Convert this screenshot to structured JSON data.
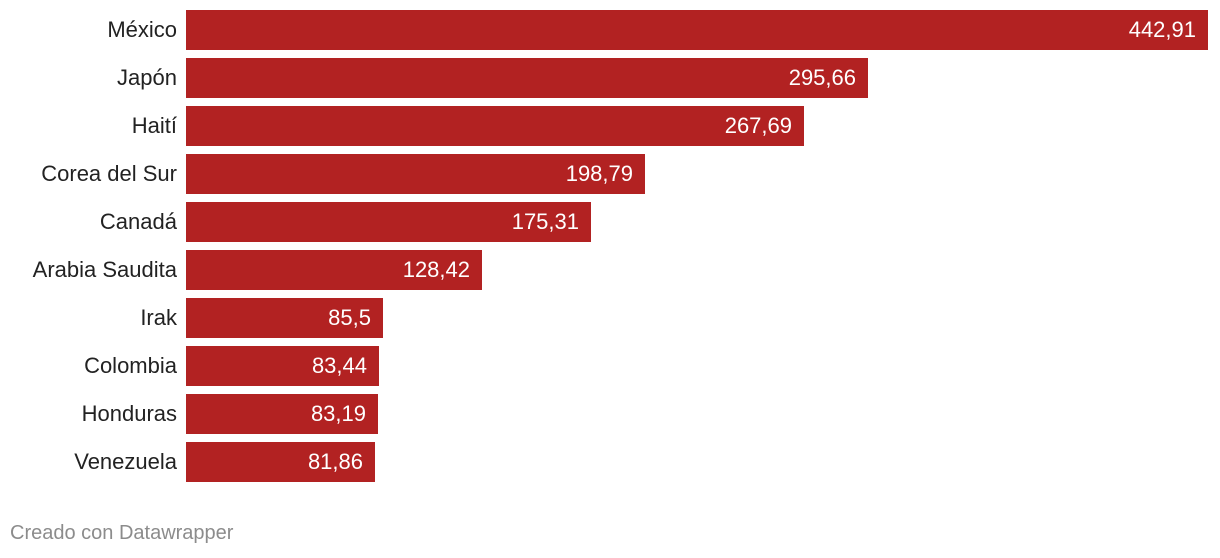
{
  "chart_data": {
    "type": "bar",
    "orientation": "horizontal",
    "categories": [
      "México",
      "Japón",
      "Haití",
      "Corea del Sur",
      "Canadá",
      "Arabia Saudita",
      "Irak",
      "Colombia",
      "Honduras",
      "Venezuela"
    ],
    "values": [
      442.91,
      295.66,
      267.69,
      198.79,
      175.31,
      128.42,
      85.5,
      83.44,
      83.19,
      81.86
    ],
    "value_labels": [
      "442,91",
      "295,66",
      "267,69",
      "198,79",
      "175,31",
      "128,42",
      "85,5",
      "83,44",
      "83,19",
      "81,86"
    ],
    "bar_color": "#b22222",
    "xlim": [
      0,
      442.91
    ]
  },
  "footer": {
    "credit": "Creado con Datawrapper"
  }
}
